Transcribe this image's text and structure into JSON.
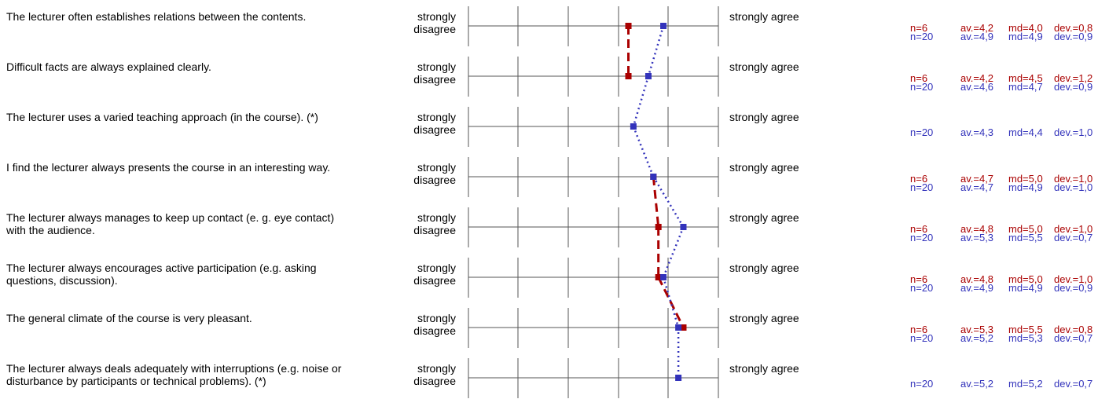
{
  "scale": {
    "left_label": "strongly disagree",
    "right_label": "strongly agree",
    "min": 1,
    "max": 6
  },
  "colors": {
    "group_a": "#aa0000",
    "group_b": "#3333bb",
    "grid": "#555555"
  },
  "rows": [
    {
      "question": "The lecturer often establishes relations between the contents.",
      "a": {
        "n": "n=6",
        "av": "av.=4,2",
        "md": "md=4,0",
        "dev": "dev.=0,8"
      },
      "b": {
        "n": "n=20",
        "av": "av.=4,9",
        "md": "md=4,9",
        "dev": "dev.=0,9"
      }
    },
    {
      "question": "Difficult facts are always explained clearly.",
      "a": {
        "n": "n=6",
        "av": "av.=4,2",
        "md": "md=4,5",
        "dev": "dev.=1,2"
      },
      "b": {
        "n": "n=20",
        "av": "av.=4,6",
        "md": "md=4,7",
        "dev": "dev.=0,9"
      }
    },
    {
      "question": "The lecturer uses a varied teaching approach (in the course). (*)",
      "a": null,
      "b": {
        "n": "n=20",
        "av": "av.=4,3",
        "md": "md=4,4",
        "dev": "dev.=1,0"
      }
    },
    {
      "question": "I find the lecturer always presents the course in an interesting way.",
      "a": {
        "n": "n=6",
        "av": "av.=4,7",
        "md": "md=5,0",
        "dev": "dev.=1,0"
      },
      "b": {
        "n": "n=20",
        "av": "av.=4,7",
        "md": "md=4,9",
        "dev": "dev.=1,0"
      }
    },
    {
      "question": "The lecturer always manages to keep up contact (e. g. eye contact) with the audience.",
      "a": {
        "n": "n=6",
        "av": "av.=4,8",
        "md": "md=5,0",
        "dev": "dev.=1,0"
      },
      "b": {
        "n": "n=20",
        "av": "av.=5,3",
        "md": "md=5,5",
        "dev": "dev.=0,7"
      }
    },
    {
      "question": "The lecturer always encourages active participation (e.g. asking questions, discussion).",
      "a": {
        "n": "n=6",
        "av": "av.=4,8",
        "md": "md=5,0",
        "dev": "dev.=1,0"
      },
      "b": {
        "n": "n=20",
        "av": "av.=4,9",
        "md": "md=4,9",
        "dev": "dev.=0,9"
      }
    },
    {
      "question": "The general climate of the course is very pleasant.",
      "a": {
        "n": "n=6",
        "av": "av.=5,3",
        "md": "md=5,5",
        "dev": "dev.=0,8"
      },
      "b": {
        "n": "n=20",
        "av": "av.=5,2",
        "md": "md=5,3",
        "dev": "dev.=0,7"
      }
    },
    {
      "question": "The lecturer always deals adequately with interruptions (e.g. noise or disturbance by participants or technical problems). (*)",
      "a": null,
      "b": {
        "n": "n=20",
        "av": "av.=5,2",
        "md": "md=5,2",
        "dev": "dev.=0,7"
      }
    }
  ],
  "chart_data": {
    "type": "line",
    "xlim": [
      1,
      6
    ],
    "x_axis": "rating scale from strongly disagree to strongly agree",
    "categories": [
      "The lecturer often establishes relations between the contents.",
      "Difficult facts are always explained clearly.",
      "The lecturer uses a varied teaching approach (in the course). (*)",
      "I find the lecturer always presents the course in an interesting way.",
      "The lecturer always manages to keep up contact (e. g. eye contact) with the audience.",
      "The lecturer always encourages active participation (e.g. asking questions, discussion).",
      "The general climate of the course is very pleasant.",
      "The lecturer always deals adequately with interruptions (e.g. noise or disturbance by participants or technical problems). (*)"
    ],
    "series": [
      {
        "values": [
          4.2,
          4.2,
          null,
          4.7,
          4.8,
          4.8,
          5.3,
          null
        ],
        "color": "#aa0000",
        "line_style": "dashed",
        "marker": "square"
      },
      {
        "values": [
          4.9,
          4.6,
          4.3,
          4.7,
          5.3,
          4.9,
          5.2,
          5.2
        ],
        "color": "#3333bb",
        "line_style": "dotted",
        "marker": "square"
      }
    ],
    "grid": true
  }
}
